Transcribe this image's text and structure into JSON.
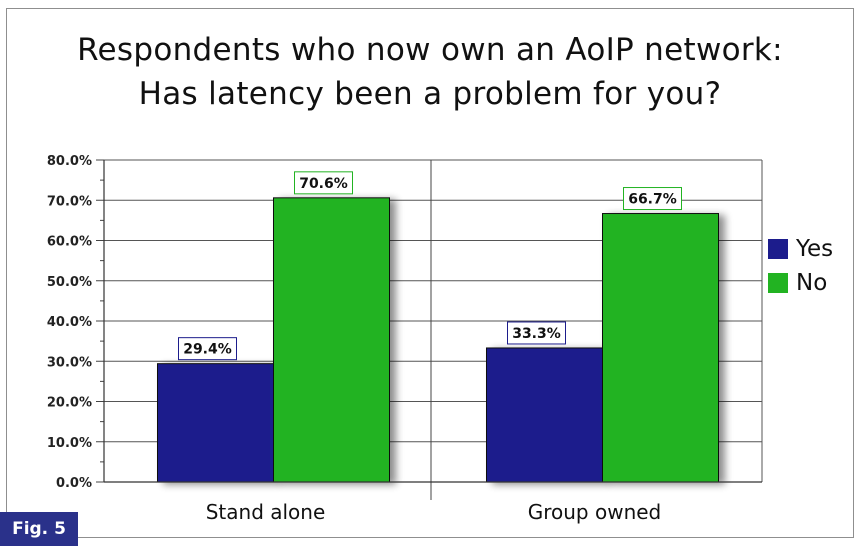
{
  "chart_data": {
    "type": "bar",
    "title": [
      "Respondents who now own an AoIP network:",
      "Has latency been a problem for you?"
    ],
    "categories": [
      "Stand alone",
      "Group owned"
    ],
    "series": [
      {
        "name": "Yes",
        "values": [
          29.4,
          33.3
        ],
        "color": "#1c1c8c"
      },
      {
        "name": "No",
        "values": [
          70.6,
          66.7
        ],
        "color": "#22b322"
      }
    ],
    "data_labels": [
      [
        "29.4%",
        "33.3%"
      ],
      [
        "70.6%",
        "66.7%"
      ]
    ],
    "y_ticks": [
      "0.0%",
      "10.0%",
      "20.0%",
      "30.0%",
      "40.0%",
      "50.0%",
      "60.0%",
      "70.0%",
      "80.0%"
    ],
    "ylim": [
      0,
      80
    ],
    "grid": true,
    "legend_position": "right"
  },
  "figure_label": "Fig. 5"
}
